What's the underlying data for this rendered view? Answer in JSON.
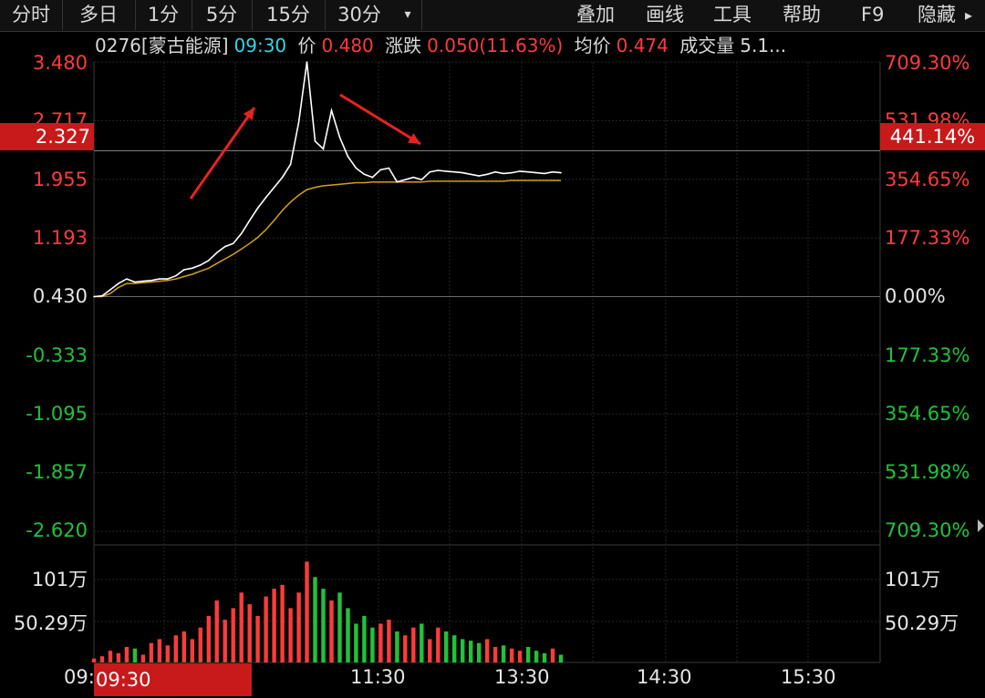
{
  "toolbar": {
    "tabs": [
      "分时",
      "多日",
      "1分",
      "5分",
      "15分",
      "30分"
    ],
    "dropdown_glyph": "▾",
    "menus": [
      "叠加",
      "画线",
      "工具",
      "帮助",
      "F9",
      "隐藏"
    ],
    "hide_arrow_glyph": "▸"
  },
  "info": {
    "stock": "0276[蒙古能源]",
    "time": "09:30",
    "price_label": "价",
    "price": "0.480",
    "change_label": "涨跌",
    "change": "0.050(11.63%)",
    "avg_label": "均价",
    "avg": "0.474",
    "volume_label": "成交量",
    "volume": "5.1..."
  },
  "crosshair": {
    "price_label": "2.327",
    "pct_label": "441.14%",
    "time_label": "09:30"
  },
  "colors": {
    "up": "#ff3b3b",
    "down": "#21c23a",
    "price_line": "#ffffff",
    "avg_line": "#d4a017",
    "highlight": "#c8191b"
  },
  "chart_data": {
    "type": "line",
    "base_price": 0.43,
    "y_ticks": [
      {
        "price": "3.480",
        "pct": "709.30%"
      },
      {
        "price": "2.717",
        "pct": "531.98%"
      },
      {
        "price": "1.955",
        "pct": "354.65%"
      },
      {
        "price": "1.193",
        "pct": "177.33%"
      },
      {
        "price": "0.430",
        "pct": "0.00%"
      },
      {
        "price": "-0.333",
        "pct": "177.33%"
      },
      {
        "price": "-1.095",
        "pct": "354.65%"
      },
      {
        "price": "-1.857",
        "pct": "531.98%"
      },
      {
        "price": "-2.620",
        "pct": "709.30%"
      }
    ],
    "ylim": [
      -2.62,
      3.48
    ],
    "volume_ticks": [
      "101万",
      "50.29万"
    ],
    "x_ticks": [
      "09:30",
      "11:30",
      "13:30",
      "14:30",
      "15:30"
    ],
    "series": [
      {
        "name": "",
        "values": [
          0.43,
          0.44,
          0.52,
          0.6,
          0.66,
          0.62,
          0.63,
          0.64,
          0.66,
          0.66,
          0.7,
          0.78,
          0.8,
          0.84,
          0.9,
          1.0,
          1.08,
          1.12,
          1.25,
          1.42,
          1.58,
          1.72,
          1.85,
          1.98,
          2.15,
          2.7,
          3.48,
          2.45,
          2.35,
          2.85,
          2.5,
          2.25,
          2.1,
          2.02,
          1.98,
          2.08,
          2.1,
          1.92,
          1.95,
          1.98,
          1.95,
          2.05,
          2.07,
          2.06,
          2.05,
          2.04,
          2.02,
          2.0,
          2.02,
          2.05,
          2.03,
          2.04,
          2.06,
          2.05,
          2.04,
          2.03,
          2.05,
          2.04
        ]
      },
      {
        "name": "",
        "values": [
          0.43,
          0.43,
          0.47,
          0.55,
          0.6,
          0.6,
          0.61,
          0.62,
          0.63,
          0.64,
          0.66,
          0.69,
          0.72,
          0.76,
          0.8,
          0.86,
          0.92,
          0.98,
          1.05,
          1.12,
          1.2,
          1.3,
          1.42,
          1.55,
          1.66,
          1.75,
          1.82,
          1.85,
          1.87,
          1.88,
          1.89,
          1.9,
          1.91,
          1.91,
          1.92,
          1.92,
          1.92,
          1.92,
          1.92,
          1.92,
          1.92,
          1.93,
          1.93,
          1.93,
          1.93,
          1.93,
          1.93,
          1.93,
          1.93,
          1.93,
          1.93,
          1.94,
          1.94,
          1.94,
          1.94,
          1.94,
          1.94,
          1.94
        ]
      }
    ],
    "volume": [
      0.05,
      0.08,
      0.15,
      0.12,
      0.2,
      0.18,
      0.1,
      0.25,
      0.3,
      0.22,
      0.35,
      0.4,
      0.3,
      0.45,
      0.6,
      0.8,
      0.55,
      0.7,
      0.9,
      0.75,
      0.6,
      0.85,
      0.95,
      1.0,
      0.7,
      0.9,
      1.3,
      1.1,
      0.95,
      0.8,
      0.9,
      0.7,
      0.5,
      0.6,
      0.45,
      0.5,
      0.55,
      0.4,
      0.35,
      0.45,
      0.5,
      0.3,
      0.45,
      0.4,
      0.35,
      0.3,
      0.28,
      0.25,
      0.3,
      0.2,
      0.22,
      0.18,
      0.15,
      0.2,
      0.15,
      0.12,
      0.18,
      0.1
    ],
    "annotations": [
      "up-arrow",
      "down-arrow"
    ]
  }
}
